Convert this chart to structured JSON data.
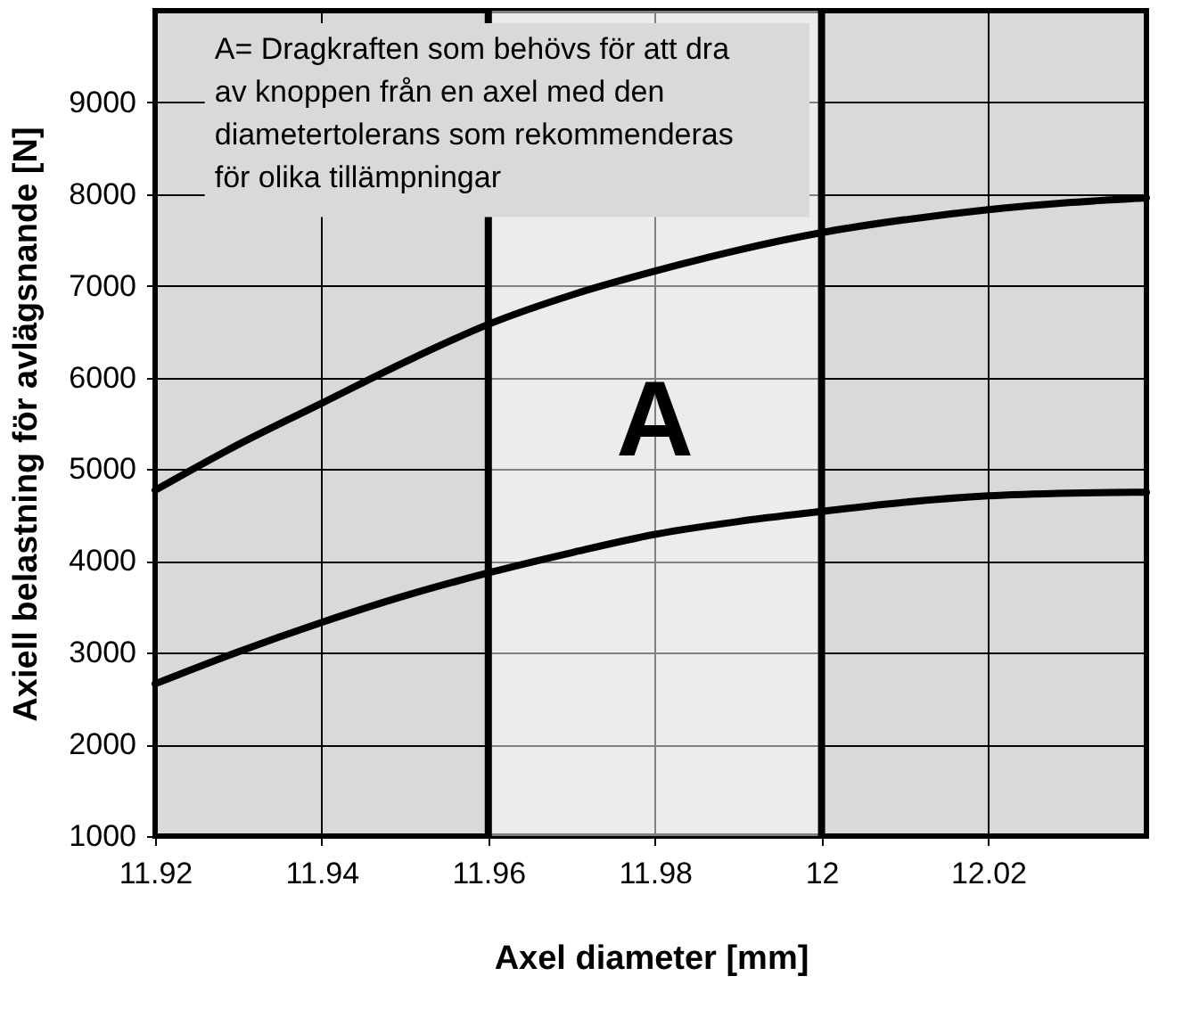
{
  "chart_data": {
    "type": "line",
    "xlabel": "Axel diameter [mm]",
    "ylabel": "Axiell belastning för avlägsnande [N]",
    "xlim": [
      11.92,
      12.039
    ],
    "ylim": [
      1000,
      10000
    ],
    "xticks": [
      11.92,
      11.94,
      11.96,
      11.98,
      12,
      12.02
    ],
    "yticks": [
      1000,
      2000,
      3000,
      4000,
      5000,
      6000,
      7000,
      8000,
      9000
    ],
    "grid": true,
    "line_style": "solid",
    "marker": "none",
    "series": [
      {
        "color": "#000000",
        "x": [
          11.92,
          11.93,
          11.94,
          11.95,
          11.96,
          11.97,
          11.98,
          11.99,
          12,
          12.01,
          12.02,
          12.03,
          12.039
        ],
        "values": [
          4770,
          5270,
          5720,
          6170,
          6580,
          6900,
          7160,
          7390,
          7580,
          7720,
          7830,
          7910,
          7960
        ]
      },
      {
        "color": "#000000",
        "x": [
          11.92,
          11.93,
          11.94,
          11.95,
          11.96,
          11.97,
          11.98,
          11.99,
          12,
          12.01,
          12.02,
          12.03,
          12.039
        ],
        "values": [
          2660,
          3010,
          3330,
          3620,
          3870,
          4090,
          4290,
          4430,
          4540,
          4640,
          4710,
          4740,
          4750
        ]
      }
    ],
    "bands": [
      {
        "axis": "x",
        "from": 11.96,
        "to": 12,
        "label": "A",
        "color": "#ffffff"
      }
    ],
    "annotations": [
      "A= Dragkraften som behövs för att dra\n     av knoppen från en axel med den\n     diametertolerans som rekommenderas\n     för olika tillämpningar"
    ]
  }
}
